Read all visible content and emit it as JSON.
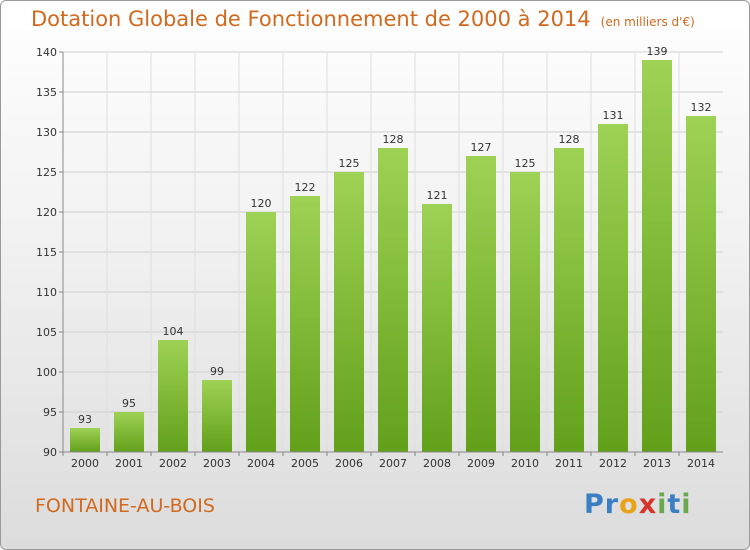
{
  "chart_data": {
    "type": "bar",
    "title": "Dotation Globale de Fonctionnement de 2000 à 2014",
    "subtitle": "(en milliers d'€)",
    "categories": [
      "2000",
      "2001",
      "2002",
      "2003",
      "2004",
      "2005",
      "2006",
      "2007",
      "2008",
      "2009",
      "2010",
      "2011",
      "2012",
      "2013",
      "2014"
    ],
    "values": [
      93,
      95,
      104,
      99,
      120,
      122,
      125,
      128,
      121,
      127,
      125,
      128,
      131,
      139,
      132
    ],
    "ylim": [
      90,
      140
    ],
    "yticks": [
      90,
      95,
      100,
      105,
      110,
      115,
      120,
      125,
      130,
      135,
      140
    ],
    "xlabel": "",
    "ylabel": "",
    "grid": true,
    "bar_color": "#7cba2e",
    "title_color": "#d2691e"
  },
  "commune": "FONTAINE-AU-BOIS",
  "logo": {
    "letters": [
      {
        "ch": "P",
        "color": "#3a7fc4"
      },
      {
        "ch": "r",
        "color": "#3a7fc4"
      },
      {
        "ch": "o",
        "color": "#e8a317"
      },
      {
        "ch": "x",
        "color": "#d9342b"
      },
      {
        "ch": "i",
        "color": "#6aa84f"
      },
      {
        "ch": "t",
        "color": "#3a7fc4"
      },
      {
        "ch": "i",
        "color": "#6aa84f"
      }
    ]
  }
}
